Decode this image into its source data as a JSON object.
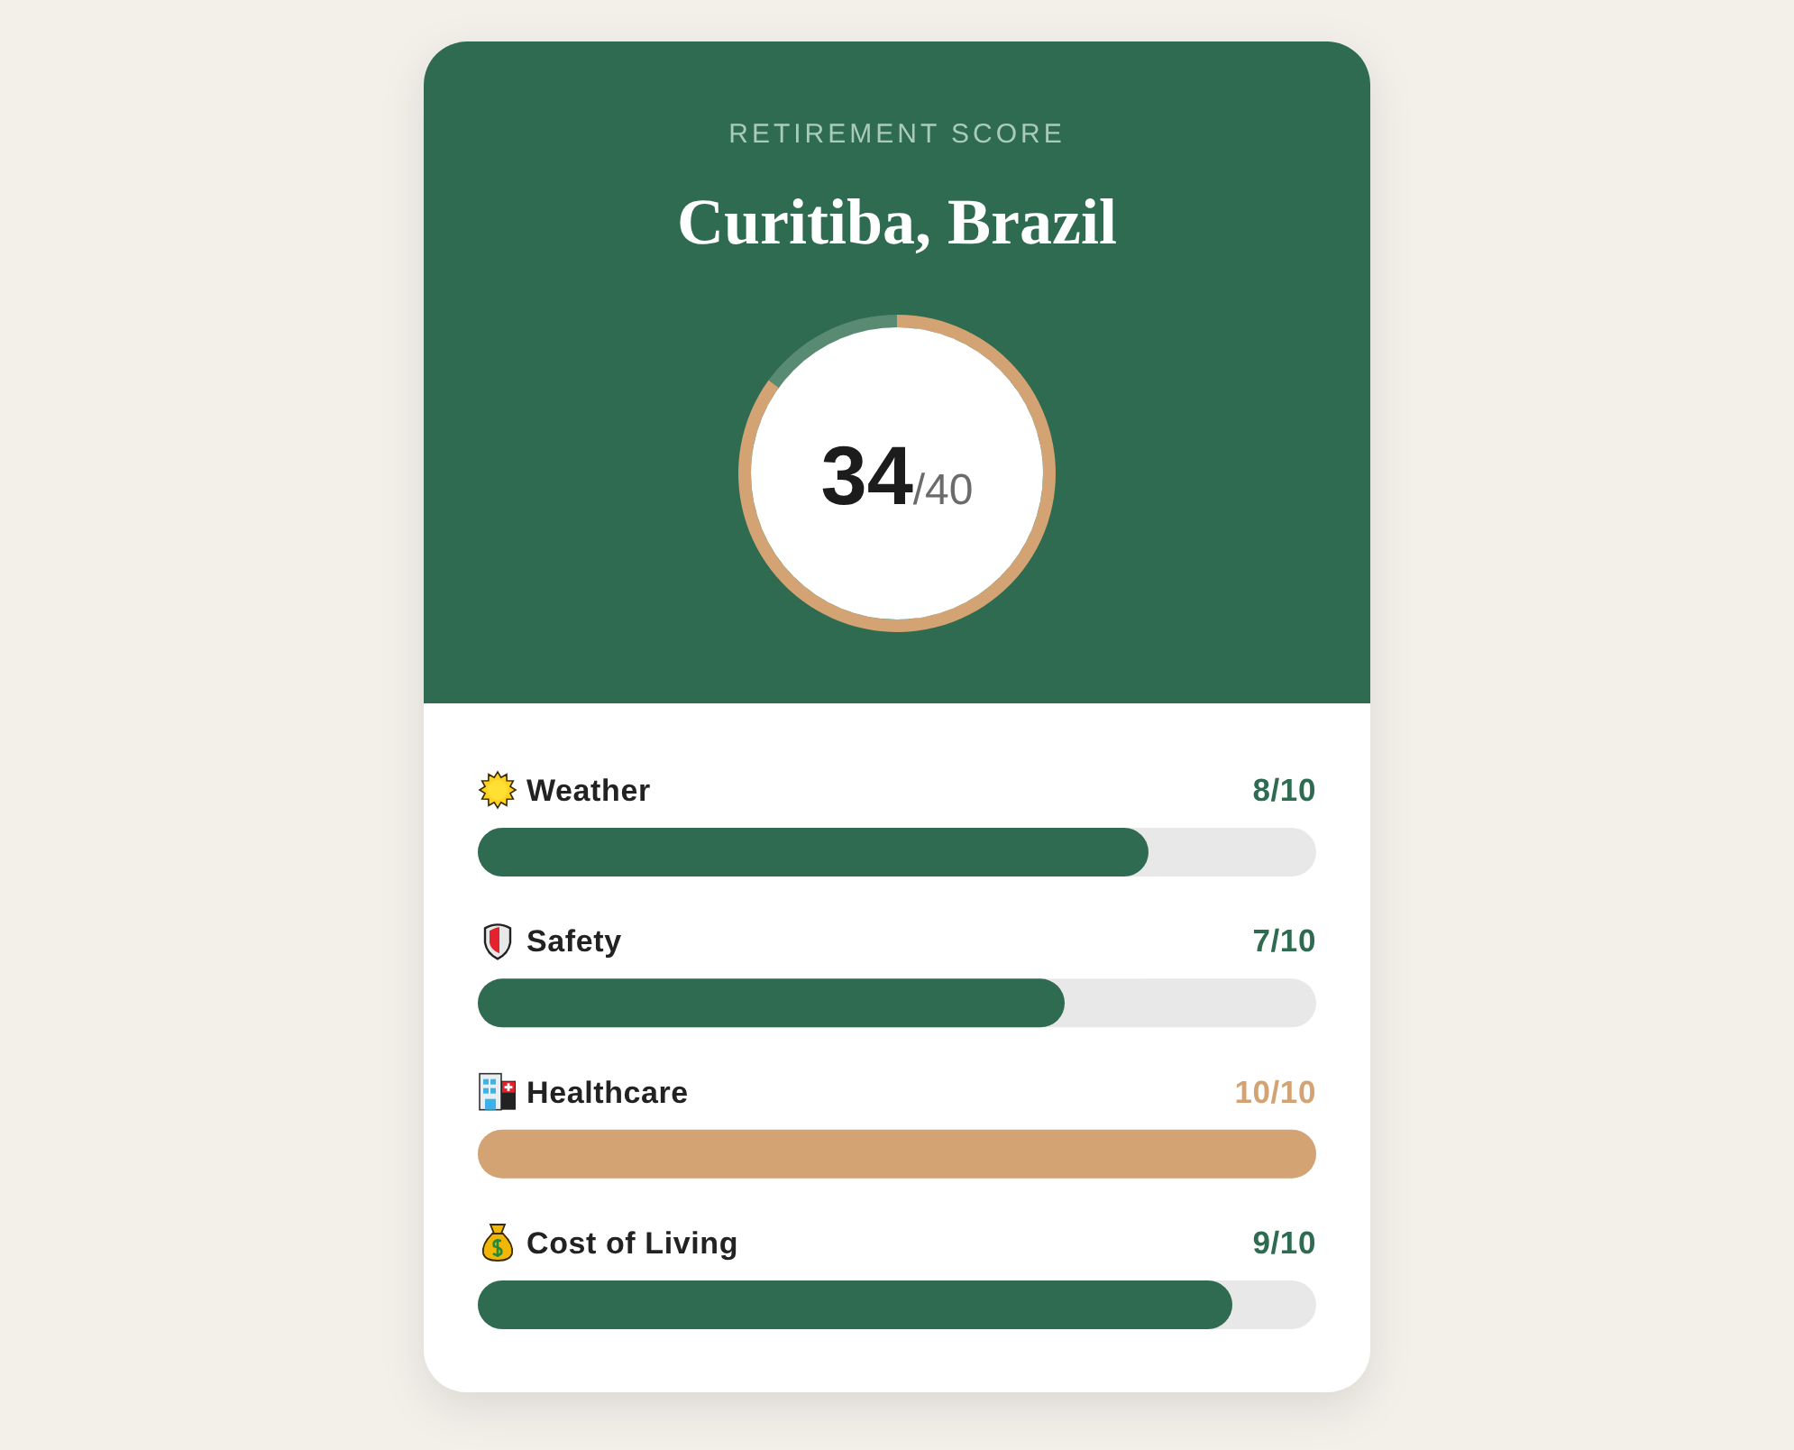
{
  "chart_data": [
    {
      "type": "donut",
      "subtitle": "RETIREMENT SCORE",
      "title": "Curitiba, Brazil",
      "categories": [
        null,
        null
      ],
      "values": [
        85,
        15
      ],
      "colors": [
        "#d4a373",
        "#588b72"
      ],
      "annotations": [
        "34",
        "/40"
      ]
    },
    {
      "type": "bar",
      "orientation": "horizontal",
      "categories": [
        "Weather",
        "Safety",
        "Healthcare",
        "Cost of Living"
      ],
      "values": [
        0.8,
        0.7,
        1,
        0.9
      ],
      "colors": [
        "#2e6b50",
        "#2e6b50",
        "#d4a373",
        "#2e6b50"
      ],
      "xlim": [
        0,
        1
      ],
      "value_labels": [
        "8/10",
        "7/10",
        "10/10",
        "9/10"
      ]
    }
  ]
}
